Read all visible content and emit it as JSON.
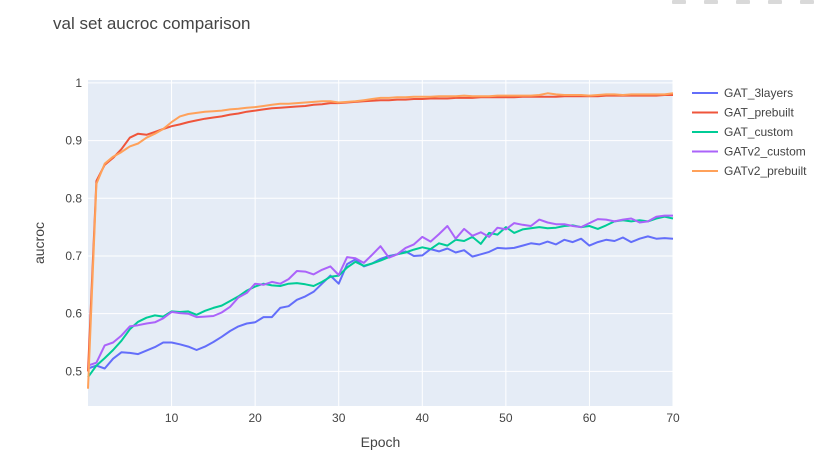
{
  "chart_data": {
    "type": "line",
    "title": "val set aucroc comparison",
    "xlabel": "Epoch",
    "ylabel": "aucroc",
    "xlim": [
      0,
      70
    ],
    "ylim": [
      0.44,
      1.005
    ],
    "x_ticks": [
      10,
      20,
      30,
      40,
      50,
      60,
      70
    ],
    "y_ticks": [
      0.5,
      0.6,
      0.7,
      0.8,
      0.9,
      1
    ],
    "y_tick_labels": [
      "0.5",
      "0.6",
      "0.7",
      "0.8",
      "0.9",
      "1"
    ],
    "x_tick_labels": [
      "10",
      "20",
      "30",
      "40",
      "50",
      "60",
      "70"
    ],
    "legend_position": "right",
    "grid": true,
    "background": "#e5ecf6",
    "series": [
      {
        "name": "GAT_3layers",
        "color": "#636efa",
        "x": [
          0,
          1,
          2,
          3,
          4,
          5,
          6,
          7,
          8,
          9,
          10,
          11,
          12,
          13,
          14,
          15,
          16,
          17,
          18,
          19,
          20,
          21,
          22,
          23,
          24,
          25,
          26,
          27,
          28,
          29,
          30,
          31,
          32,
          33,
          34,
          35,
          36,
          37,
          38,
          39,
          40,
          41,
          42,
          43,
          44,
          45,
          46,
          47,
          48,
          49,
          50,
          51,
          52,
          53,
          54,
          55,
          56,
          57,
          58,
          59,
          60,
          61,
          62,
          63,
          64,
          65,
          66,
          67,
          68,
          69,
          70
        ],
        "values": [
          0.505,
          0.51,
          0.505,
          0.522,
          0.533,
          0.532,
          0.53,
          0.536,
          0.542,
          0.55,
          0.55,
          0.547,
          0.543,
          0.537,
          0.543,
          0.551,
          0.56,
          0.57,
          0.578,
          0.583,
          0.585,
          0.594,
          0.594,
          0.61,
          0.613,
          0.624,
          0.63,
          0.638,
          0.652,
          0.666,
          0.652,
          0.686,
          0.694,
          0.682,
          0.687,
          0.695,
          0.7,
          0.703,
          0.708,
          0.7,
          0.701,
          0.712,
          0.708,
          0.713,
          0.706,
          0.71,
          0.699,
          0.703,
          0.707,
          0.714,
          0.713,
          0.714,
          0.718,
          0.722,
          0.72,
          0.725,
          0.72,
          0.728,
          0.724,
          0.73,
          0.718,
          0.724,
          0.728,
          0.726,
          0.732,
          0.724,
          0.73,
          0.734,
          0.73,
          0.731,
          0.73
        ]
      },
      {
        "name": "GAT_prebuilt",
        "color": "#ef553b",
        "x": [
          0,
          1,
          2,
          3,
          4,
          5,
          6,
          7,
          8,
          9,
          10,
          11,
          12,
          13,
          14,
          15,
          16,
          17,
          18,
          19,
          20,
          21,
          22,
          23,
          24,
          25,
          26,
          27,
          28,
          29,
          30,
          31,
          32,
          33,
          34,
          35,
          36,
          37,
          38,
          39,
          40,
          41,
          42,
          43,
          44,
          45,
          46,
          47,
          48,
          49,
          50,
          51,
          52,
          53,
          54,
          55,
          56,
          57,
          58,
          59,
          60,
          61,
          62,
          63,
          64,
          65,
          66,
          67,
          68,
          69,
          70
        ],
        "values": [
          0.5,
          0.83,
          0.858,
          0.87,
          0.885,
          0.905,
          0.912,
          0.91,
          0.915,
          0.92,
          0.925,
          0.928,
          0.932,
          0.935,
          0.938,
          0.94,
          0.942,
          0.945,
          0.947,
          0.95,
          0.952,
          0.954,
          0.956,
          0.957,
          0.958,
          0.959,
          0.96,
          0.962,
          0.963,
          0.965,
          0.965,
          0.966,
          0.967,
          0.968,
          0.969,
          0.97,
          0.97,
          0.971,
          0.971,
          0.972,
          0.972,
          0.973,
          0.973,
          0.973,
          0.974,
          0.974,
          0.974,
          0.975,
          0.975,
          0.975,
          0.975,
          0.975,
          0.976,
          0.976,
          0.976,
          0.976,
          0.976,
          0.977,
          0.977,
          0.977,
          0.977,
          0.977,
          0.978,
          0.978,
          0.978,
          0.978,
          0.978,
          0.978,
          0.978,
          0.979,
          0.979
        ]
      },
      {
        "name": "GAT_custom",
        "color": "#00cc96",
        "x": [
          0,
          1,
          2,
          3,
          4,
          5,
          6,
          7,
          8,
          9,
          10,
          11,
          12,
          13,
          14,
          15,
          16,
          17,
          18,
          19,
          20,
          21,
          22,
          23,
          24,
          25,
          26,
          27,
          28,
          29,
          30,
          31,
          32,
          33,
          34,
          35,
          36,
          37,
          38,
          39,
          40,
          41,
          42,
          43,
          44,
          45,
          46,
          47,
          48,
          49,
          50,
          51,
          52,
          53,
          54,
          55,
          56,
          57,
          58,
          59,
          60,
          61,
          62,
          63,
          64,
          65,
          66,
          67,
          68,
          69,
          70
        ],
        "values": [
          0.49,
          0.51,
          0.523,
          0.537,
          0.553,
          0.573,
          0.586,
          0.593,
          0.597,
          0.595,
          0.604,
          0.603,
          0.604,
          0.598,
          0.605,
          0.61,
          0.614,
          0.622,
          0.63,
          0.64,
          0.647,
          0.652,
          0.649,
          0.648,
          0.652,
          0.653,
          0.651,
          0.648,
          0.655,
          0.664,
          0.666,
          0.68,
          0.69,
          0.683,
          0.687,
          0.692,
          0.698,
          0.703,
          0.706,
          0.711,
          0.715,
          0.712,
          0.722,
          0.718,
          0.728,
          0.726,
          0.733,
          0.721,
          0.74,
          0.737,
          0.75,
          0.74,
          0.746,
          0.748,
          0.75,
          0.748,
          0.749,
          0.752,
          0.753,
          0.75,
          0.752,
          0.747,
          0.753,
          0.76,
          0.762,
          0.76,
          0.762,
          0.76,
          0.765,
          0.768,
          0.765
        ]
      },
      {
        "name": "GATv2_custom",
        "color": "#ab63fa",
        "x": [
          0,
          1,
          2,
          3,
          4,
          5,
          6,
          7,
          8,
          9,
          10,
          11,
          12,
          13,
          14,
          15,
          16,
          17,
          18,
          19,
          20,
          21,
          22,
          23,
          24,
          25,
          26,
          27,
          28,
          29,
          30,
          31,
          32,
          33,
          34,
          35,
          36,
          37,
          38,
          39,
          40,
          41,
          42,
          43,
          44,
          45,
          46,
          47,
          48,
          49,
          50,
          51,
          52,
          53,
          54,
          55,
          56,
          57,
          58,
          59,
          60,
          61,
          62,
          63,
          64,
          65,
          66,
          67,
          68,
          69,
          70
        ],
        "values": [
          0.51,
          0.515,
          0.545,
          0.55,
          0.562,
          0.578,
          0.58,
          0.583,
          0.585,
          0.592,
          0.603,
          0.601,
          0.6,
          0.594,
          0.595,
          0.596,
          0.602,
          0.612,
          0.628,
          0.636,
          0.652,
          0.65,
          0.655,
          0.652,
          0.66,
          0.674,
          0.673,
          0.668,
          0.676,
          0.682,
          0.667,
          0.698,
          0.696,
          0.688,
          0.702,
          0.717,
          0.697,
          0.703,
          0.714,
          0.72,
          0.733,
          0.725,
          0.738,
          0.752,
          0.73,
          0.747,
          0.735,
          0.741,
          0.733,
          0.749,
          0.746,
          0.757,
          0.754,
          0.752,
          0.763,
          0.758,
          0.755,
          0.755,
          0.752,
          0.75,
          0.757,
          0.764,
          0.763,
          0.76,
          0.763,
          0.765,
          0.758,
          0.76,
          0.768,
          0.77,
          0.77
        ]
      },
      {
        "name": "GATv2_prebuilt",
        "color": "#ffa15a",
        "x": [
          0,
          1,
          2,
          3,
          4,
          5,
          6,
          7,
          8,
          9,
          10,
          11,
          12,
          13,
          14,
          15,
          16,
          17,
          18,
          19,
          20,
          21,
          22,
          23,
          24,
          25,
          26,
          27,
          28,
          29,
          30,
          31,
          32,
          33,
          34,
          35,
          36,
          37,
          38,
          39,
          40,
          41,
          42,
          43,
          44,
          45,
          46,
          47,
          48,
          49,
          50,
          51,
          52,
          53,
          54,
          55,
          56,
          57,
          58,
          59,
          60,
          61,
          62,
          63,
          64,
          65,
          66,
          67,
          68,
          69,
          70
        ],
        "values": [
          0.47,
          0.825,
          0.86,
          0.872,
          0.88,
          0.89,
          0.895,
          0.905,
          0.912,
          0.92,
          0.932,
          0.942,
          0.946,
          0.948,
          0.95,
          0.951,
          0.952,
          0.954,
          0.955,
          0.957,
          0.958,
          0.96,
          0.962,
          0.964,
          0.964,
          0.965,
          0.966,
          0.967,
          0.968,
          0.968,
          0.966,
          0.967,
          0.968,
          0.97,
          0.972,
          0.974,
          0.974,
          0.975,
          0.975,
          0.976,
          0.976,
          0.976,
          0.977,
          0.977,
          0.977,
          0.978,
          0.977,
          0.977,
          0.977,
          0.978,
          0.978,
          0.978,
          0.978,
          0.978,
          0.979,
          0.982,
          0.98,
          0.979,
          0.979,
          0.979,
          0.978,
          0.979,
          0.98,
          0.98,
          0.979,
          0.98,
          0.98,
          0.98,
          0.98,
          0.98,
          0.982
        ]
      }
    ]
  }
}
